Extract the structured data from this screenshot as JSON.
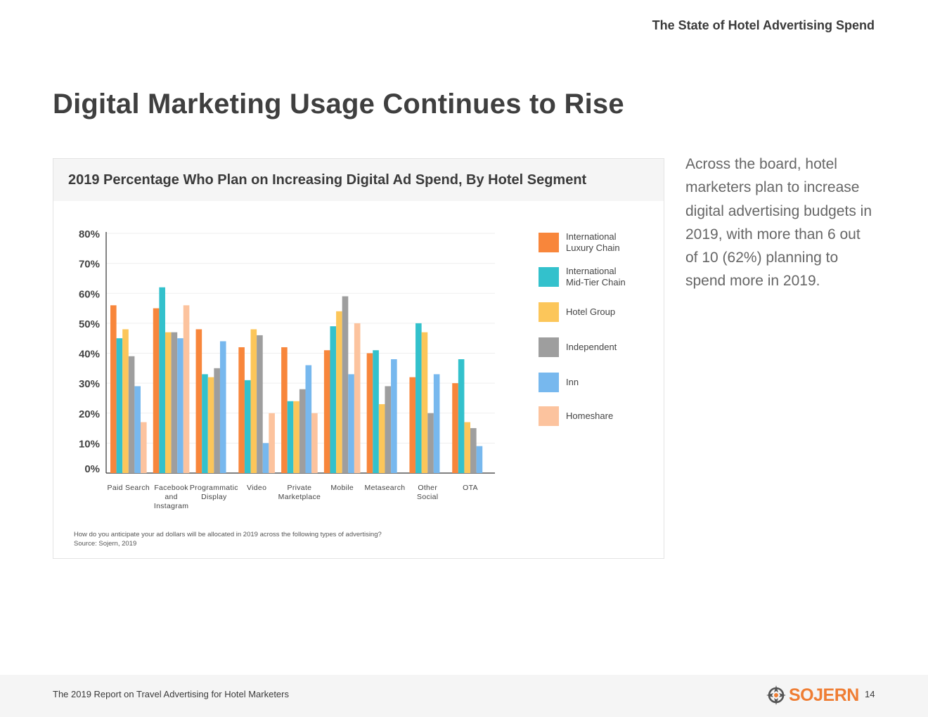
{
  "header": {
    "running_title": "The State of Hotel Advertising Spend"
  },
  "page_title": "Digital Marketing Usage Continues to Rise",
  "chart_card": {
    "title": "2019 Percentage Who Plan on Increasing Digital Ad Spend, By Hotel Segment",
    "note_question": "How do you anticipate your ad dollars will be allocated in 2019 across the following types of advertising?",
    "note_source": "Source: Sojern, 2019"
  },
  "chart_data": {
    "type": "bar",
    "title": "2019 Percentage Who Plan on Increasing Digital Ad Spend, By Hotel Segment",
    "xlabel": "",
    "ylabel": "",
    "ylim": [
      0,
      80
    ],
    "yticks": [
      "0%",
      "10%",
      "20%",
      "30%",
      "40%",
      "50%",
      "60%",
      "70%",
      "80%"
    ],
    "grid": true,
    "legend_position": "right",
    "categories": [
      [
        "Paid Search"
      ],
      [
        "Facebook",
        "and",
        "Instagram"
      ],
      [
        "Programmatic",
        "Display"
      ],
      [
        "Video"
      ],
      [
        "Private",
        "Marketplace"
      ],
      [
        "Mobile"
      ],
      [
        "Metasearch"
      ],
      [
        "Other",
        "Social"
      ],
      [
        "OTA"
      ]
    ],
    "series": [
      {
        "name": "International Luxury Chain",
        "label_lines": [
          "International",
          "Luxury Chain"
        ],
        "color": "#f8863b",
        "values": [
          56,
          55,
          48,
          42,
          42,
          41,
          40,
          32,
          30
        ]
      },
      {
        "name": "International Mid-Tier Chain",
        "label_lines": [
          "International",
          "Mid-Tier Chain"
        ],
        "color": "#33c1cc",
        "values": [
          45,
          62,
          33,
          31,
          24,
          49,
          41,
          50,
          38
        ]
      },
      {
        "name": "Hotel Group",
        "label_lines": [
          "Hotel Group"
        ],
        "color": "#fcc65a",
        "values": [
          48,
          47,
          32,
          48,
          24,
          54,
          23,
          47,
          17
        ]
      },
      {
        "name": "Independent",
        "label_lines": [
          "Independent"
        ],
        "color": "#9e9e9e",
        "values": [
          39,
          47,
          35,
          46,
          28,
          59,
          29,
          20,
          15
        ]
      },
      {
        "name": "Inn",
        "label_lines": [
          "Inn"
        ],
        "color": "#77b8ee",
        "values": [
          29,
          45,
          44,
          10,
          36,
          33,
          38,
          33,
          9
        ]
      },
      {
        "name": "Homeshare",
        "label_lines": [
          "Homeshare"
        ],
        "color": "#fcc39e",
        "values": [
          17,
          56,
          0,
          20,
          20,
          50,
          0,
          0,
          0
        ]
      }
    ]
  },
  "side_text": "Across the board, hotel marketers plan to increase digital advertising budgets in 2019, with more than 6 out of 10 (62%) planning to spend more in 2019.",
  "footer": {
    "report_title": "The 2019 Report on Travel Advertising for Hotel Marketers",
    "logo_text": "SOJERN",
    "page_number": "14",
    "logo_color": "#ef7d33"
  }
}
